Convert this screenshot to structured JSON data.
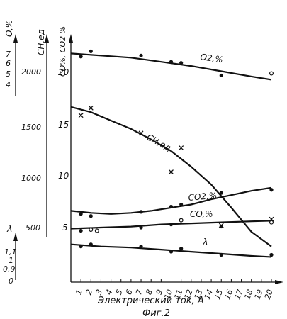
{
  "chart_data": {
    "type": "line",
    "caption": "Фиг.2",
    "xlabel": "Электрический ток, А",
    "x_ticks": [
      1,
      2,
      3,
      4,
      5,
      6,
      7,
      8,
      9,
      10,
      11,
      12,
      13,
      14,
      15,
      16,
      17,
      18,
      19,
      20
    ],
    "xlim": [
      0,
      20
    ],
    "axes": {
      "o2": {
        "label": "O,%",
        "ticks": [
          "7",
          "6",
          "5",
          "4"
        ]
      },
      "ch": {
        "label": "CH,ед",
        "ticks": [
          "2000",
          "1500",
          "1000",
          "500"
        ]
      },
      "co": {
        "label": "CO%, CO2 %",
        "ticks": [
          "20",
          "15",
          "10",
          "5"
        ]
      },
      "lambda": {
        "label": "λ",
        "ticks": [
          "1,1",
          "1",
          "0,9",
          "0"
        ]
      }
    },
    "series": [
      {
        "name": "O2,%",
        "curve": [
          [
            0,
            21.8
          ],
          [
            3,
            21.6
          ],
          [
            6,
            21.4
          ],
          [
            9,
            21.0
          ],
          [
            12,
            20.6
          ],
          [
            15,
            20.1
          ],
          [
            18,
            19.6
          ],
          [
            20,
            19.3
          ]
        ],
        "points": [
          [
            1,
            21.5
          ],
          [
            2,
            22.0
          ],
          [
            7,
            21.6
          ],
          [
            10,
            21.0
          ],
          [
            11,
            20.9
          ],
          [
            15,
            19.7
          ],
          [
            20,
            19.9
          ]
        ],
        "markers": [
          "dot",
          "dot",
          "dot",
          "dot",
          "dot",
          "dot",
          "open"
        ]
      },
      {
        "name": "CH,ед",
        "curve": [
          [
            0,
            16.7
          ],
          [
            2,
            16.2
          ],
          [
            4,
            15.4
          ],
          [
            6,
            14.6
          ],
          [
            8,
            13.6
          ],
          [
            10,
            12.5
          ],
          [
            12,
            11.0
          ],
          [
            14,
            9.3
          ],
          [
            16,
            7.1
          ],
          [
            18,
            4.8
          ],
          [
            20,
            3.4
          ]
        ],
        "points": [
          [
            1,
            15.9
          ],
          [
            2,
            16.6
          ],
          [
            7,
            14.2
          ],
          [
            10,
            10.5
          ],
          [
            11,
            12.8
          ],
          [
            15,
            5.4
          ],
          [
            20,
            6.0
          ]
        ],
        "markers": [
          "cross",
          "cross",
          "cross",
          "cross",
          "cross",
          "cross",
          "cross"
        ]
      },
      {
        "name": "CO2,%",
        "curve": [
          [
            0,
            6.8
          ],
          [
            2,
            6.6
          ],
          [
            4,
            6.5
          ],
          [
            6,
            6.6
          ],
          [
            8,
            6.8
          ],
          [
            10,
            7.1
          ],
          [
            12,
            7.4
          ],
          [
            14,
            7.9
          ],
          [
            16,
            8.3
          ],
          [
            18,
            8.7
          ],
          [
            20,
            9.0
          ]
        ],
        "points": [
          [
            1,
            6.5
          ],
          [
            2,
            6.3
          ],
          [
            7,
            6.7
          ],
          [
            10,
            7.2
          ],
          [
            11,
            7.4
          ],
          [
            15,
            8.5
          ],
          [
            20,
            8.8
          ]
        ],
        "markers": [
          "dot",
          "dot",
          "dot",
          "dot",
          "dot",
          "dot",
          "dot"
        ]
      },
      {
        "name": "CO,%",
        "curve": [
          [
            0,
            5.1
          ],
          [
            3,
            5.2
          ],
          [
            6,
            5.3
          ],
          [
            9,
            5.5
          ],
          [
            12,
            5.6
          ],
          [
            15,
            5.7
          ],
          [
            18,
            5.8
          ],
          [
            20,
            5.85
          ]
        ],
        "points": [
          [
            1,
            4.9
          ],
          [
            2,
            5.0
          ],
          [
            2.6,
            4.9
          ],
          [
            7,
            5.2
          ],
          [
            10,
            5.5
          ],
          [
            11,
            5.9
          ],
          [
            15,
            5.3
          ],
          [
            20,
            5.7
          ]
        ],
        "markers": [
          "dot",
          "open",
          "open",
          "dot",
          "dot",
          "open",
          "dot",
          "open"
        ]
      },
      {
        "name": "λ",
        "curve": [
          [
            0,
            3.6
          ],
          [
            3,
            3.4
          ],
          [
            6,
            3.3
          ],
          [
            9,
            3.1
          ],
          [
            12,
            2.9
          ],
          [
            15,
            2.7
          ],
          [
            18,
            2.5
          ],
          [
            20,
            2.4
          ]
        ],
        "points": [
          [
            1,
            3.4
          ],
          [
            2,
            3.6
          ],
          [
            7,
            3.4
          ],
          [
            10,
            2.9
          ],
          [
            11,
            3.2
          ],
          [
            15,
            2.6
          ],
          [
            20,
            2.6
          ]
        ],
        "markers": [
          "dot",
          "dot",
          "dot",
          "dot",
          "dot",
          "dot",
          "dot"
        ]
      }
    ]
  }
}
